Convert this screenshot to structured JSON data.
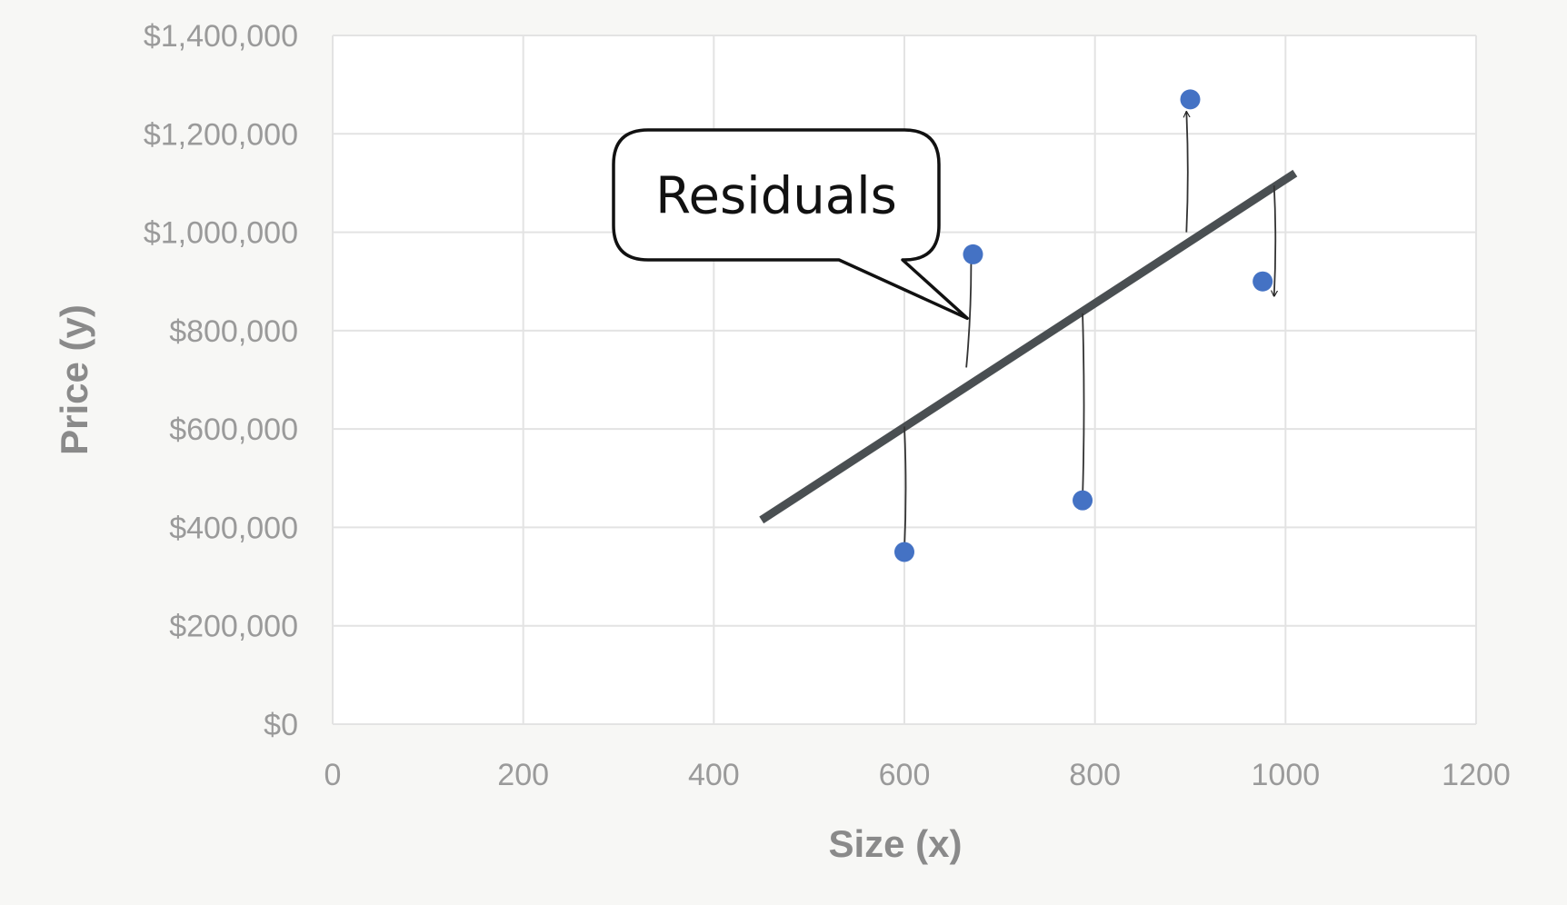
{
  "chart_data": {
    "type": "scatter",
    "title": "",
    "xlabel": "Size (x)",
    "ylabel": "Price (y)",
    "xlim": [
      0,
      1200
    ],
    "ylim": [
      0,
      1400000
    ],
    "x_ticks": [
      0,
      200,
      400,
      600,
      800,
      1000,
      1200
    ],
    "x_tick_labels": [
      "0",
      "200",
      "400",
      "600",
      "800",
      "1000",
      "1200"
    ],
    "y_ticks": [
      0,
      200000,
      400000,
      600000,
      800000,
      1000000,
      1200000,
      1400000
    ],
    "y_tick_labels": [
      "$0",
      "$200,000",
      "$400,000",
      "$600,000",
      "$800,000",
      "$1,000,000",
      "$1,200,000",
      "$1,400,000"
    ],
    "grid": true,
    "series": [
      {
        "points": [
          {
            "x": 600,
            "y": 350000
          },
          {
            "x": 672,
            "y": 955000
          },
          {
            "x": 787,
            "y": 455000
          },
          {
            "x": 900,
            "y": 1270000
          },
          {
            "x": 976,
            "y": 900000
          }
        ],
        "color": "#4472c4"
      }
    ],
    "regression_line": {
      "x1": 450,
      "y1": 415000,
      "x2": 1010,
      "y2": 1120000,
      "color": "#4a4f52"
    },
    "residuals": [
      {
        "from": {
          "x": 600,
          "y": 605000
        },
        "to": {
          "x": 600,
          "y": 355000
        }
      },
      {
        "from": {
          "x": 665,
          "y": 725000
        },
        "to": {
          "x": 670,
          "y": 950000
        }
      },
      {
        "from": {
          "x": 787,
          "y": 835000
        },
        "to": {
          "x": 787,
          "y": 460000
        }
      },
      {
        "from": {
          "x": 896,
          "y": 1000000
        },
        "to": {
          "x": 896,
          "y": 1245000
        }
      },
      {
        "from": {
          "x": 988,
          "y": 1095000
        },
        "to": {
          "x": 988,
          "y": 870000
        }
      }
    ],
    "annotations": [
      {
        "text": "Residuals",
        "pointer": {
          "x": 666,
          "y": 825000
        }
      }
    ]
  }
}
